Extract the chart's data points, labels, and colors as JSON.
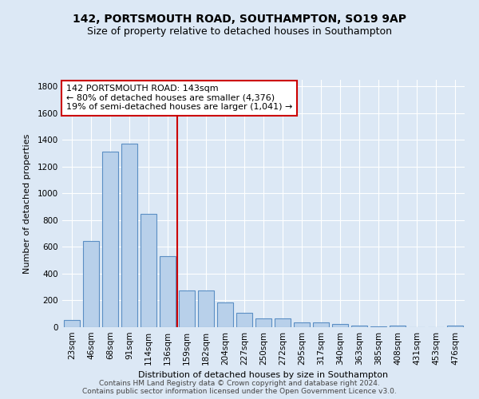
{
  "title": "142, PORTSMOUTH ROAD, SOUTHAMPTON, SO19 9AP",
  "subtitle": "Size of property relative to detached houses in Southampton",
  "xlabel": "Distribution of detached houses by size in Southampton",
  "ylabel": "Number of detached properties",
  "footer_line1": "Contains HM Land Registry data © Crown copyright and database right 2024.",
  "footer_line2": "Contains public sector information licensed under the Open Government Licence v3.0.",
  "categories": [
    "23sqm",
    "46sqm",
    "68sqm",
    "91sqm",
    "114sqm",
    "136sqm",
    "159sqm",
    "182sqm",
    "204sqm",
    "227sqm",
    "250sqm",
    "272sqm",
    "295sqm",
    "317sqm",
    "340sqm",
    "363sqm",
    "385sqm",
    "408sqm",
    "431sqm",
    "453sqm",
    "476sqm"
  ],
  "values": [
    55,
    645,
    1310,
    1375,
    845,
    530,
    275,
    275,
    185,
    105,
    65,
    65,
    38,
    35,
    22,
    10,
    5,
    10,
    0,
    0,
    12
  ],
  "bar_color": "#b8d0ea",
  "bar_edge_color": "#5b8ec4",
  "vline_x_index": 5.5,
  "vline_color": "#cc0000",
  "annotation_line1": "142 PORTSMOUTH ROAD: 143sqm",
  "annotation_line2": "← 80% of detached houses are smaller (4,376)",
  "annotation_line3": "19% of semi-detached houses are larger (1,041) →",
  "ylim": [
    0,
    1850
  ],
  "yticks": [
    0,
    200,
    400,
    600,
    800,
    1000,
    1200,
    1400,
    1600,
    1800
  ],
  "bg_color": "#dce8f5",
  "plot_bg_color": "#dce8f5",
  "grid_color": "#ffffff",
  "title_fontsize": 10,
  "subtitle_fontsize": 9,
  "annotation_fontsize": 8,
  "axis_fontsize": 8,
  "tick_fontsize": 7.5,
  "footer_fontsize": 6.5
}
